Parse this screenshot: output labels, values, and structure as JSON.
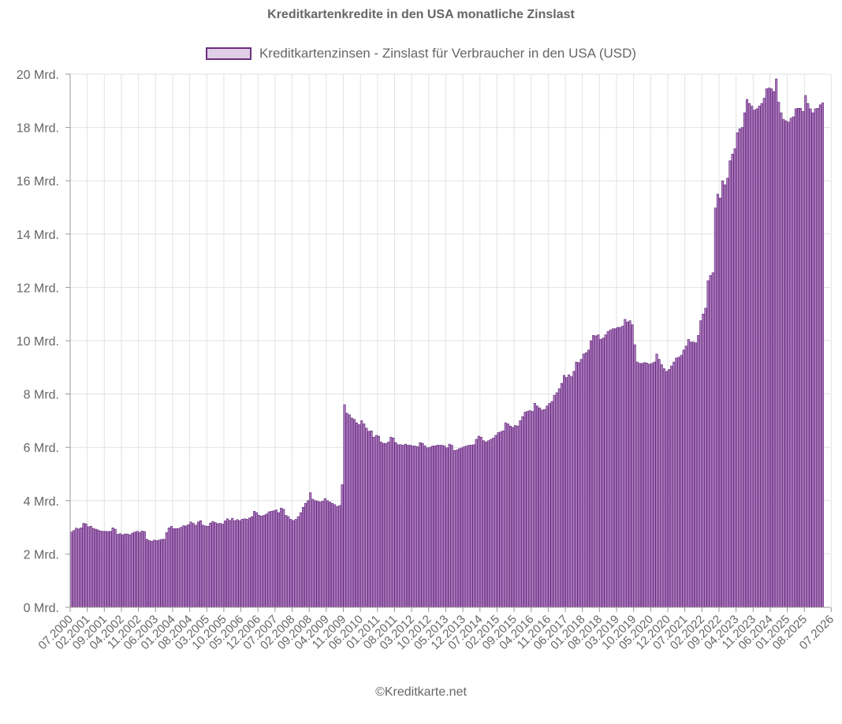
{
  "title": "Kreditkartenkredite in den USA monatliche Zinslast",
  "footer": "©Kreditkarte.net",
  "legend": {
    "label": "Kreditkartenzinsen - Zinslast für Verbraucher in den USA (USD)"
  },
  "colors": {
    "bar_fill": "#b07cc4",
    "bar_stroke": "#5a1f6e",
    "grid": "#e2e2e2",
    "axis": "#999999",
    "text": "#666666"
  },
  "chart_data": {
    "type": "bar",
    "title": "Kreditkartenkredite in den USA monatliche Zinslast",
    "xlabel": "",
    "ylabel": "",
    "unit": "Mrd.",
    "ylim": [
      0,
      20
    ],
    "y_ticks": [
      "0 Mrd.",
      "2 Mrd.",
      "4 Mrd.",
      "6 Mrd.",
      "8 Mrd.",
      "10 Mrd.",
      "12 Mrd.",
      "14 Mrd.",
      "16 Mrd.",
      "18 Mrd.",
      "20 Mrd."
    ],
    "x_ticks": [
      "07.2000",
      "02.2001",
      "09.2001",
      "04.2002",
      "11.2002",
      "06.2003",
      "01.2004",
      "08.2004",
      "03.2005",
      "10.2005",
      "05.2006",
      "12.2006",
      "07.2007",
      "02.2008",
      "09.2008",
      "04.2009",
      "11.2009",
      "06.2010",
      "01.2011",
      "08.2011",
      "03.2012",
      "10.2012",
      "05.2013",
      "12.2013",
      "07.2014",
      "02.2015",
      "09.2015",
      "04.2016",
      "11.2016",
      "06.2017",
      "01.2018",
      "08.2018",
      "03.2019",
      "10.2019",
      "05.2020",
      "12.2020",
      "07.2021",
      "02.2022",
      "09.2022",
      "04.2023",
      "11.2023",
      "06.2024",
      "01.2025",
      "08.2025",
      "07.2026"
    ],
    "grid": true,
    "legend_position": "top",
    "series": [
      {
        "name": "Kreditkartenzinsen - Zinslast für Verbraucher in den USA (USD)",
        "start": "07.2000",
        "frequency": "monthly",
        "values": [
          2.82,
          2.88,
          2.97,
          2.94,
          2.98,
          3.15,
          3.13,
          3.02,
          3.04,
          2.96,
          2.93,
          2.9,
          2.86,
          2.85,
          2.85,
          2.84,
          2.85,
          2.98,
          2.93,
          2.74,
          2.76,
          2.72,
          2.75,
          2.75,
          2.72,
          2.78,
          2.82,
          2.85,
          2.81,
          2.86,
          2.84,
          2.55,
          2.5,
          2.48,
          2.52,
          2.5,
          2.52,
          2.55,
          2.55,
          2.8,
          2.98,
          3.04,
          2.95,
          2.95,
          2.96,
          3.0,
          3.06,
          3.05,
          3.1,
          3.2,
          3.15,
          3.08,
          3.2,
          3.25,
          3.08,
          3.05,
          3.04,
          3.16,
          3.22,
          3.18,
          3.14,
          3.15,
          3.12,
          3.24,
          3.32,
          3.26,
          3.34,
          3.25,
          3.29,
          3.25,
          3.3,
          3.32,
          3.3,
          3.35,
          3.4,
          3.6,
          3.55,
          3.45,
          3.42,
          3.45,
          3.5,
          3.58,
          3.6,
          3.62,
          3.65,
          3.55,
          3.72,
          3.68,
          3.45,
          3.4,
          3.3,
          3.25,
          3.3,
          3.4,
          3.55,
          3.75,
          3.9,
          4.0,
          4.3,
          4.05,
          4.0,
          3.98,
          3.95,
          3.98,
          4.08,
          4.0,
          3.95,
          3.9,
          3.85,
          3.78,
          3.82,
          4.6,
          7.6,
          7.28,
          7.22,
          7.1,
          7.05,
          6.92,
          6.85,
          7.0,
          6.88,
          6.72,
          6.6,
          6.62,
          6.38,
          6.45,
          6.42,
          6.2,
          6.15,
          6.15,
          6.2,
          6.38,
          6.35,
          6.18,
          6.1,
          6.1,
          6.08,
          6.12,
          6.08,
          6.08,
          6.05,
          6.05,
          6.02,
          6.18,
          6.15,
          6.05,
          5.98,
          6.0,
          6.05,
          6.05,
          6.08,
          6.08,
          6.08,
          6.05,
          5.98,
          6.12,
          6.08,
          5.88,
          5.9,
          5.95,
          5.98,
          6.02,
          6.05,
          6.08,
          6.08,
          6.1,
          6.3,
          6.42,
          6.38,
          6.25,
          6.2,
          6.25,
          6.3,
          6.35,
          6.45,
          6.55,
          6.58,
          6.62,
          6.92,
          6.88,
          6.8,
          6.75,
          6.82,
          6.8,
          7.0,
          7.15,
          7.32,
          7.35,
          7.38,
          7.35,
          7.65,
          7.55,
          7.48,
          7.4,
          7.42,
          7.55,
          7.65,
          7.72,
          7.95,
          8.05,
          8.2,
          8.4,
          8.7,
          8.62,
          8.72,
          8.65,
          8.85,
          9.2,
          9.18,
          9.3,
          9.5,
          9.55,
          9.65,
          10.0,
          10.2,
          10.18,
          10.22,
          10.05,
          10.1,
          10.22,
          10.35,
          10.4,
          10.45,
          10.45,
          10.5,
          10.5,
          10.55,
          10.8,
          10.7,
          10.75,
          10.6,
          9.85,
          9.2,
          9.15,
          9.15,
          9.18,
          9.16,
          9.12,
          9.15,
          9.2,
          9.5,
          9.3,
          9.1,
          8.95,
          8.85,
          8.92,
          9.05,
          9.2,
          9.35,
          9.38,
          9.45,
          9.65,
          9.8,
          10.05,
          9.95,
          9.95,
          9.92,
          10.2,
          10.75,
          11.0,
          11.22,
          12.25,
          12.45,
          12.55,
          14.98,
          15.5,
          15.35,
          16.0,
          15.85,
          16.1,
          16.75,
          17.0,
          17.2,
          17.8,
          17.95,
          18.0,
          18.55,
          19.05,
          18.9,
          18.8,
          18.65,
          18.7,
          18.8,
          18.9,
          19.1,
          19.45,
          19.48,
          19.45,
          19.35,
          19.82,
          18.95,
          18.55,
          18.3,
          18.25,
          18.2,
          18.35,
          18.4,
          18.7,
          18.72,
          18.72,
          18.6,
          19.2,
          18.9,
          18.7,
          18.55,
          18.7,
          18.72,
          18.85,
          18.92
        ]
      }
    ]
  }
}
